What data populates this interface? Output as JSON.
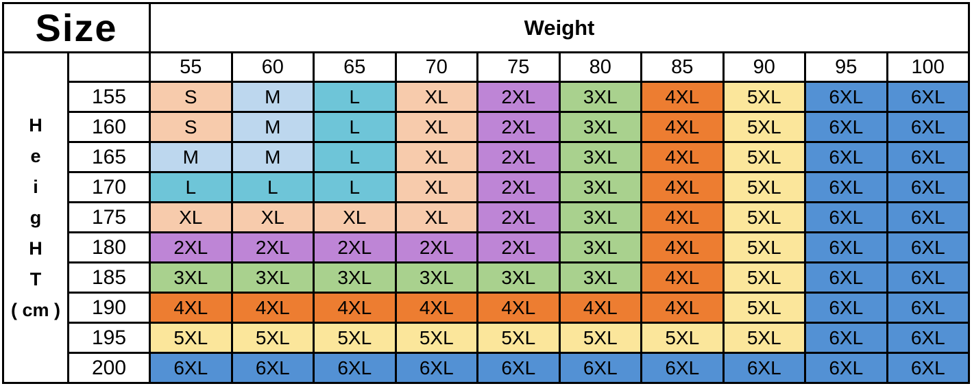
{
  "titles": {
    "size": "Size",
    "weight": "Weight"
  },
  "height_axis_letters": [
    "H",
    "e",
    "i",
    "g",
    "H",
    "T",
    "( cm )"
  ],
  "size_colors": {
    "S": "#F7CBAC",
    "M": "#BDD7EE",
    "L": "#6EC5D8",
    "XL": "#F7CBAC",
    "2XL": "#BE85D6",
    "3XL": "#A9D18E",
    "4XL": "#ED7D31",
    "5XL": "#FBE69B",
    "6XL": "#5391D4"
  },
  "border_color": "#000000",
  "chart_data": {
    "type": "table",
    "title": "Size",
    "column_group_label": "Weight",
    "columns": [
      "55",
      "60",
      "65",
      "70",
      "75",
      "80",
      "85",
      "90",
      "95",
      "100"
    ],
    "row_group_label": "Height (cm)",
    "row_headers": [
      "155",
      "160",
      "165",
      "170",
      "175",
      "180",
      "185",
      "190",
      "195",
      "200"
    ],
    "values": [
      [
        "S",
        "M",
        "L",
        "XL",
        "2XL",
        "3XL",
        "4XL",
        "5XL",
        "6XL",
        "6XL"
      ],
      [
        "S",
        "M",
        "L",
        "XL",
        "2XL",
        "3XL",
        "4XL",
        "5XL",
        "6XL",
        "6XL"
      ],
      [
        "M",
        "M",
        "L",
        "XL",
        "2XL",
        "3XL",
        "4XL",
        "5XL",
        "6XL",
        "6XL"
      ],
      [
        "L",
        "L",
        "L",
        "XL",
        "2XL",
        "3XL",
        "4XL",
        "5XL",
        "6XL",
        "6XL"
      ],
      [
        "XL",
        "XL",
        "XL",
        "XL",
        "2XL",
        "3XL",
        "4XL",
        "5XL",
        "6XL",
        "6XL"
      ],
      [
        "2XL",
        "2XL",
        "2XL",
        "2XL",
        "2XL",
        "3XL",
        "4XL",
        "5XL",
        "6XL",
        "6XL"
      ],
      [
        "3XL",
        "3XL",
        "3XL",
        "3XL",
        "3XL",
        "3XL",
        "4XL",
        "5XL",
        "6XL",
        "6XL"
      ],
      [
        "4XL",
        "4XL",
        "4XL",
        "4XL",
        "4XL",
        "4XL",
        "4XL",
        "5XL",
        "6XL",
        "6XL"
      ],
      [
        "5XL",
        "5XL",
        "5XL",
        "5XL",
        "5XL",
        "5XL",
        "5XL",
        "5XL",
        "6XL",
        "6XL"
      ],
      [
        "6XL",
        "6XL",
        "6XL",
        "6XL",
        "6XL",
        "6XL",
        "6XL",
        "6XL",
        "6XL",
        "6XL"
      ]
    ]
  }
}
